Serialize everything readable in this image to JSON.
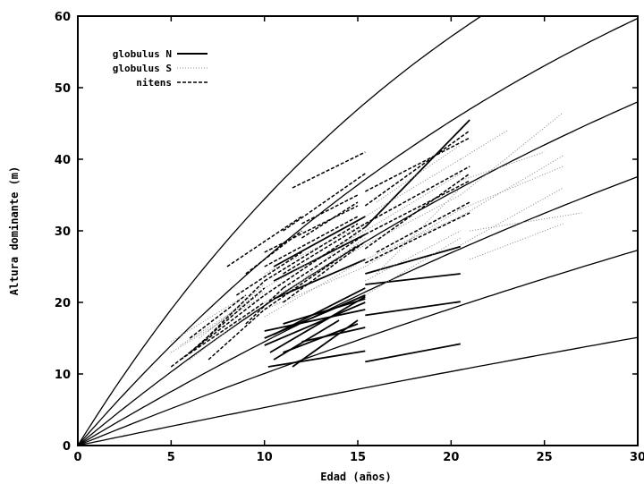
{
  "chart_data": {
    "type": "line",
    "xlabel": "Edad (años)",
    "ylabel": "Altura dominante (m)",
    "xlim": [
      0,
      30
    ],
    "ylim": [
      0,
      60
    ],
    "x_ticks": [
      0,
      5,
      10,
      15,
      20,
      25,
      30
    ],
    "y_ticks": [
      0,
      10,
      20,
      30,
      40,
      50,
      60
    ],
    "grid": false,
    "legend_position": "top-left",
    "legend": [
      {
        "label": "globulus N",
        "style": "solid"
      },
      {
        "label": "globulus S",
        "style": "dotted"
      },
      {
        "label": "nitens",
        "style": "dashed"
      }
    ],
    "curves": [
      {
        "asymptote": 101,
        "k": 0.0417,
        "points": [
          [
            0,
            0
          ],
          [
            5,
            19.0
          ],
          [
            10,
            34.3
          ],
          [
            15,
            46.7
          ],
          [
            20,
            56.9
          ],
          [
            22,
            60.5
          ]
        ]
      },
      {
        "asymptote": 101,
        "k": 0.0298,
        "points": [
          [
            0,
            0
          ],
          [
            5,
            13.9
          ],
          [
            10,
            25.9
          ],
          [
            15,
            36.2
          ],
          [
            20,
            45.1
          ],
          [
            25,
            52.8
          ],
          [
            30,
            59.4
          ]
        ]
      },
      {
        "asymptote": 101,
        "k": 0.0215,
        "points": [
          [
            0,
            0
          ],
          [
            5,
            10.2
          ],
          [
            10,
            19.4
          ],
          [
            15,
            27.6
          ],
          [
            20,
            35.0
          ],
          [
            25,
            41.6
          ],
          [
            30,
            47.6
          ]
        ]
      },
      {
        "asymptote": 101,
        "k": 0.0155,
        "points": [
          [
            0,
            0
          ],
          [
            5,
            7.4
          ],
          [
            10,
            14.3
          ],
          [
            15,
            20.7
          ],
          [
            20,
            26.6
          ],
          [
            25,
            32.1
          ],
          [
            30,
            37.3
          ]
        ]
      },
      {
        "asymptote": 101,
        "k": 0.0105,
        "points": [
          [
            0,
            0
          ],
          [
            5,
            5.1
          ],
          [
            10,
            10.0
          ],
          [
            15,
            14.6
          ],
          [
            20,
            19.0
          ],
          [
            25,
            23.1
          ],
          [
            30,
            27.1
          ]
        ]
      },
      {
        "asymptote": 101,
        "k": 0.0054,
        "points": [
          [
            0,
            0
          ],
          [
            5,
            2.7
          ],
          [
            10,
            5.3
          ],
          [
            15,
            7.8
          ],
          [
            20,
            10.3
          ],
          [
            25,
            12.7
          ],
          [
            30,
            15.0
          ]
        ]
      }
    ],
    "series": [
      {
        "name": "globulus N",
        "segments": [
          [
            [
              10,
              14
            ],
            [
              15.4,
              20
            ]
          ],
          [
            [
              10,
              15
            ],
            [
              15.4,
              21
            ]
          ],
          [
            [
              10.3,
              13
            ],
            [
              15.4,
              20.8
            ]
          ],
          [
            [
              10.5,
              15.5
            ],
            [
              15.4,
              22
            ]
          ],
          [
            [
              10,
              16
            ],
            [
              15.4,
              19
            ]
          ],
          [
            [
              11,
              13
            ],
            [
              15,
              17
            ]
          ],
          [
            [
              11,
              17
            ],
            [
              15.4,
              20.5
            ]
          ],
          [
            [
              12,
              14.5
            ],
            [
              15.4,
              16.5
            ]
          ],
          [
            [
              10.5,
              12
            ],
            [
              14,
              17.5
            ]
          ],
          [
            [
              10.2,
              11
            ],
            [
              15.4,
              13.2
            ]
          ],
          [
            [
              11.5,
              11
            ],
            [
              15,
              17.5
            ]
          ],
          [
            [
              15.4,
              24
            ],
            [
              20.5,
              27.8
            ]
          ],
          [
            [
              15.4,
              22.5
            ],
            [
              20.5,
              24
            ]
          ],
          [
            [
              15.4,
              18.2
            ],
            [
              20.5,
              20.1
            ]
          ],
          [
            [
              15.4,
              11.7
            ],
            [
              20.5,
              14.2
            ]
          ],
          [
            [
              10.5,
              20.5
            ],
            [
              15.4,
              26
            ]
          ],
          [
            [
              10.5,
              23
            ],
            [
              15.4,
              29.5
            ]
          ],
          [
            [
              10.5,
              25
            ],
            [
              15.4,
              32
            ]
          ],
          [
            [
              15.4,
              30.5
            ],
            [
              21,
              45.5
            ]
          ]
        ]
      },
      {
        "name": "globulus S",
        "segments": [
          [
            [
              5,
              13
            ],
            [
              10,
              21
            ]
          ],
          [
            [
              5.5,
              14
            ],
            [
              10,
              21.5
            ]
          ],
          [
            [
              6,
              12
            ],
            [
              10,
              20
            ]
          ],
          [
            [
              6.5,
              15
            ],
            [
              10,
              22
            ]
          ],
          [
            [
              7,
              16
            ],
            [
              10,
              22.5
            ]
          ],
          [
            [
              5,
              14.5
            ],
            [
              9,
              21
            ]
          ],
          [
            [
              8,
              18
            ],
            [
              10,
              23
            ]
          ],
          [
            [
              10,
              18
            ],
            [
              15.4,
              26
            ]
          ],
          [
            [
              10,
              20
            ],
            [
              15.4,
              28
            ]
          ],
          [
            [
              10,
              22
            ],
            [
              15.4,
              30
            ]
          ],
          [
            [
              10,
              24
            ],
            [
              15.4,
              31
            ]
          ],
          [
            [
              10,
              19
            ],
            [
              15.4,
              25
            ]
          ],
          [
            [
              11,
              21
            ],
            [
              15.4,
              29
            ]
          ],
          [
            [
              12,
              23
            ],
            [
              15.4,
              31
            ]
          ],
          [
            [
              15.4,
              26
            ],
            [
              20.5,
              32
            ]
          ],
          [
            [
              15.4,
              28
            ],
            [
              20.5,
              35
            ]
          ],
          [
            [
              15.4,
              30
            ],
            [
              20.5,
              38
            ]
          ],
          [
            [
              15.4,
              32
            ],
            [
              20.5,
              40
            ]
          ],
          [
            [
              15.4,
              23
            ],
            [
              20.5,
              30
            ]
          ],
          [
            [
              15.4,
              25
            ],
            [
              20.5,
              33
            ]
          ],
          [
            [
              15.4,
              21
            ],
            [
              20.5,
              29
            ]
          ],
          [
            [
              16,
              34
            ],
            [
              20.5,
              42
            ]
          ],
          [
            [
              16,
              24
            ],
            [
              20.5,
              36
            ]
          ],
          [
            [
              20.5,
              32
            ],
            [
              26,
              40.5
            ]
          ],
          [
            [
              20.5,
              33
            ],
            [
              26,
              39
            ]
          ],
          [
            [
              20.5,
              35
            ],
            [
              26,
              46.5
            ]
          ],
          [
            [
              20.5,
              37
            ],
            [
              25,
              41
            ]
          ],
          [
            [
              20.5,
              28
            ],
            [
              26,
              36
            ]
          ],
          [
            [
              21,
              30
            ],
            [
              27,
              32.5
            ]
          ],
          [
            [
              21,
              26
            ],
            [
              26,
              31
            ]
          ],
          [
            [
              20.5,
              40
            ],
            [
              23,
              44
            ]
          ]
        ]
      },
      {
        "name": "nitens",
        "segments": [
          [
            [
              5,
              11
            ],
            [
              10,
              21
            ]
          ],
          [
            [
              5.5,
              12
            ],
            [
              10,
              20
            ]
          ],
          [
            [
              6,
              13
            ],
            [
              10,
              22
            ]
          ],
          [
            [
              6.5,
              14
            ],
            [
              10,
              23
            ]
          ],
          [
            [
              7,
              12
            ],
            [
              10,
              19
            ]
          ],
          [
            [
              6,
              15
            ],
            [
              9,
              21
            ]
          ],
          [
            [
              8,
              25
            ],
            [
              12,
              32
            ]
          ],
          [
            [
              8.5,
              21
            ],
            [
              12,
              27
            ]
          ],
          [
            [
              9,
              17
            ],
            [
              11,
              22
            ]
          ],
          [
            [
              9,
              24
            ],
            [
              12,
              30
            ]
          ],
          [
            [
              10,
              19
            ],
            [
              15,
              28
            ]
          ],
          [
            [
              10,
              21
            ],
            [
              15.4,
              30.5
            ]
          ],
          [
            [
              10,
              23
            ],
            [
              15,
              31
            ]
          ],
          [
            [
              10,
              25
            ],
            [
              15,
              32
            ]
          ],
          [
            [
              10,
              27
            ],
            [
              15,
              33.5
            ]
          ],
          [
            [
              11,
              24
            ],
            [
              15.4,
              31
            ]
          ],
          [
            [
              11,
              22
            ],
            [
              15.4,
              29.5
            ]
          ],
          [
            [
              11,
              20
            ],
            [
              15.4,
              28.5
            ]
          ],
          [
            [
              11,
              30
            ],
            [
              15.4,
              38
            ]
          ],
          [
            [
              11.5,
              36
            ],
            [
              15.4,
              41
            ]
          ],
          [
            [
              12,
              29
            ],
            [
              15,
              34
            ]
          ],
          [
            [
              12,
              31
            ],
            [
              15,
              35
            ]
          ],
          [
            [
              15.4,
              27.5
            ],
            [
              21,
              38
            ]
          ],
          [
            [
              15.4,
              29.5
            ],
            [
              21,
              37
            ]
          ],
          [
            [
              15.4,
              31
            ],
            [
              21,
              39
            ]
          ],
          [
            [
              15.4,
              25.5
            ],
            [
              21,
              32.5
            ]
          ],
          [
            [
              15.4,
              33.5
            ],
            [
              21,
              44
            ]
          ],
          [
            [
              15.4,
              35.5
            ],
            [
              21,
              43
            ]
          ],
          [
            [
              16,
              27
            ],
            [
              21,
              34
            ]
          ]
        ]
      }
    ]
  }
}
